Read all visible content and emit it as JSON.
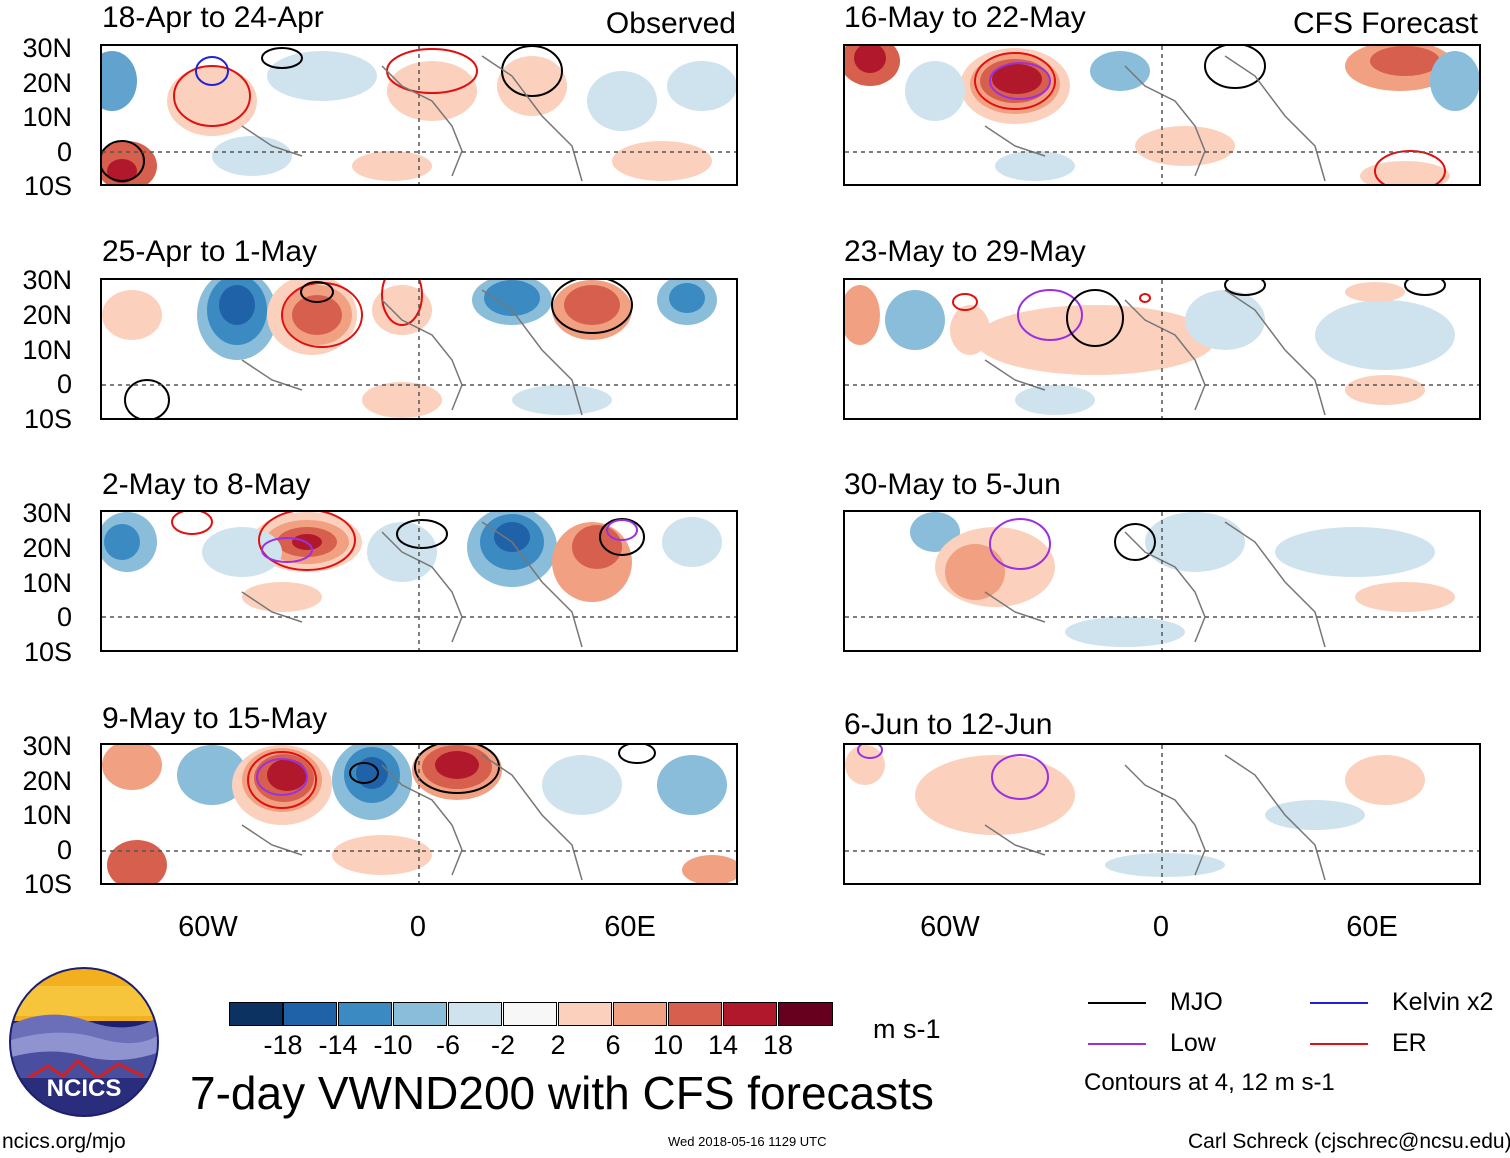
{
  "header": {
    "left_label": "Observed",
    "right_label": "CFS Forecast"
  },
  "panels": [
    {
      "title": "18-Apr to 24-Apr",
      "column": "observed"
    },
    {
      "title": "25-Apr to 1-May",
      "column": "observed"
    },
    {
      "title": "2-May to 8-May",
      "column": "observed"
    },
    {
      "title": "9-May to 15-May",
      "column": "observed"
    },
    {
      "title": "16-May to 22-May",
      "column": "forecast"
    },
    {
      "title": "23-May to 29-May",
      "column": "forecast"
    },
    {
      "title": "30-May to 5-Jun",
      "column": "forecast"
    },
    {
      "title": "6-Jun to 12-Jun",
      "column": "forecast"
    }
  ],
  "lat_labels": [
    "30N",
    "20N",
    "10N",
    "0",
    "10S"
  ],
  "lon_labels": [
    "60W",
    "0",
    "60E"
  ],
  "colorbar": {
    "ticks": [
      "-18",
      "-14",
      "-10",
      "-6",
      "-2",
      "2",
      "6",
      "10",
      "14",
      "18"
    ],
    "colors": [
      "#0b3260",
      "#1f62a8",
      "#3b8bc2",
      "#89bdda",
      "#cfe3ef",
      "#f7f7f7",
      "#fbd1bd",
      "#f1a181",
      "#d6604d",
      "#b2182b",
      "#67001f"
    ],
    "units": "m s-1"
  },
  "legend": {
    "items": [
      {
        "label": "MJO",
        "color": "#000000"
      },
      {
        "label": "Kelvin x2",
        "color": "#1f22d8"
      },
      {
        "label": "Low",
        "color": "#9b30e0"
      },
      {
        "label": "ER",
        "color": "#e01010"
      }
    ],
    "note": "Contours at 4, 12 m s-1"
  },
  "title": "7-day VWND200 with CFS forecasts",
  "logo": {
    "text": "NCICS"
  },
  "footer": {
    "left": "ncics.org/mjo",
    "center": "Wed 2018-05-16 1129 UTC",
    "right": "Carl Schreck (cjschrec@ncsu.edu)"
  }
}
